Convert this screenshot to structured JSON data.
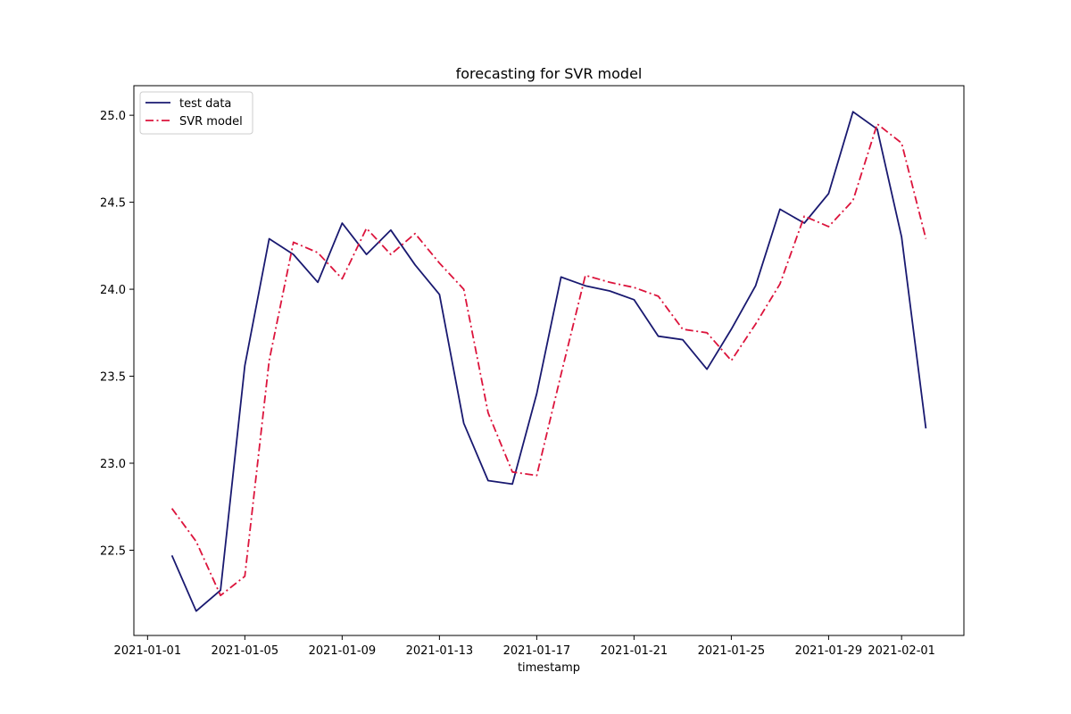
{
  "chart_data": {
    "type": "line",
    "title": "forecasting for SVR model",
    "xlabel": "timestamp",
    "ylabel": "",
    "x": [
      "2021-01-02",
      "2021-01-03",
      "2021-01-04",
      "2021-01-05",
      "2021-01-06",
      "2021-01-07",
      "2021-01-08",
      "2021-01-09",
      "2021-01-10",
      "2021-01-11",
      "2021-01-12",
      "2021-01-13",
      "2021-01-14",
      "2021-01-15",
      "2021-01-16",
      "2021-01-17",
      "2021-01-18",
      "2021-01-19",
      "2021-01-20",
      "2021-01-21",
      "2021-01-22",
      "2021-01-23",
      "2021-01-24",
      "2021-01-25",
      "2021-01-26",
      "2021-01-27",
      "2021-01-28",
      "2021-01-29",
      "2021-01-30",
      "2021-01-31",
      "2021-02-01",
      "2021-02-02"
    ],
    "series": [
      {
        "name": "test data",
        "color": "#191970",
        "style": "solid",
        "values": [
          22.47,
          22.15,
          22.27,
          23.56,
          24.29,
          24.2,
          24.04,
          24.38,
          24.2,
          24.34,
          24.14,
          23.97,
          23.23,
          22.9,
          22.88,
          23.4,
          24.07,
          24.02,
          23.99,
          23.94,
          23.73,
          23.71,
          23.54,
          23.77,
          24.02,
          24.46,
          24.38,
          24.55,
          25.02,
          24.92,
          24.3,
          23.2
        ]
      },
      {
        "name": "SVR model",
        "color": "#dc143c",
        "style": "dashdot",
        "values": [
          22.74,
          22.55,
          22.24,
          22.35,
          23.59,
          24.27,
          24.21,
          24.06,
          24.35,
          24.2,
          24.32,
          24.15,
          24.0,
          23.29,
          22.95,
          22.93,
          23.51,
          24.08,
          24.04,
          24.01,
          23.96,
          23.77,
          23.75,
          23.59,
          23.8,
          24.03,
          24.42,
          24.36,
          24.51,
          24.95,
          24.84,
          24.29
        ]
      }
    ],
    "x_ticks": [
      "2021-01-01",
      "2021-01-05",
      "2021-01-09",
      "2021-01-13",
      "2021-01-17",
      "2021-01-21",
      "2021-01-25",
      "2021-01-29",
      "2021-02-01"
    ],
    "y_ticks": [
      22.5,
      23.0,
      23.5,
      24.0,
      24.5,
      25.0
    ],
    "xlim": [
      "2020-12-31T10:30",
      "2021-02-03T13:30"
    ],
    "ylim": [
      22.01,
      25.17
    ],
    "legend_position": "top-left",
    "grid": false
  }
}
